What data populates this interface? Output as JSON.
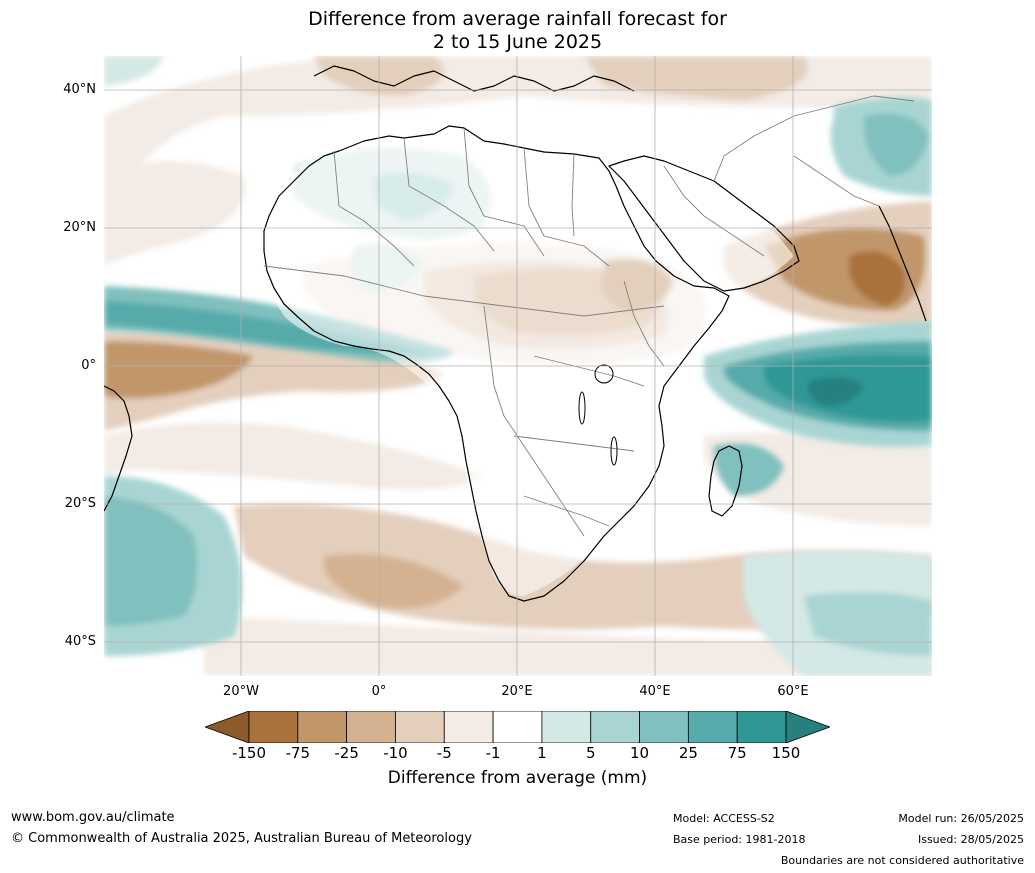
{
  "title": {
    "line1": "Difference from average rainfall forecast for",
    "line2": "2 to 15 June 2025"
  },
  "map": {
    "lat_labels": [
      "40°N",
      "20°N",
      "0°",
      "20°S",
      "40°S"
    ],
    "lon_labels": [
      "20°W",
      "0°",
      "20°E",
      "40°E",
      "60°E"
    ],
    "ocean_color": "#ffffff",
    "coastline_color": "#000000",
    "border_color": "#808080",
    "grid_color": "#b0b0b0"
  },
  "legend": {
    "ticks": [
      "-150",
      "-75",
      "-25",
      "-10",
      "-5",
      "-1",
      "1",
      "5",
      "10",
      "25",
      "75",
      "150"
    ],
    "colors": [
      "#8c5a2b",
      "#a9713b",
      "#c1966b",
      "#d4b291",
      "#e4cfbd",
      "#f3ebe5",
      "#ffffff",
      "#d4e8e6",
      "#a8d5d3",
      "#80c0be",
      "#57abaa",
      "#2f9896",
      "#25807e"
    ],
    "label": "Difference from average (mm)"
  },
  "footer": {
    "website": "www.bom.gov.au/climate",
    "copyright": "© Commonwealth of Australia 2025, Australian Bureau of Meteorology",
    "model": "Model: ACCESS-S2",
    "base_period": "Base period: 1981-2018",
    "model_run": "Model run: 26/05/2025",
    "issued": "Issued: 28/05/2025",
    "disclaimer": "Boundaries are not considered authoritative"
  }
}
